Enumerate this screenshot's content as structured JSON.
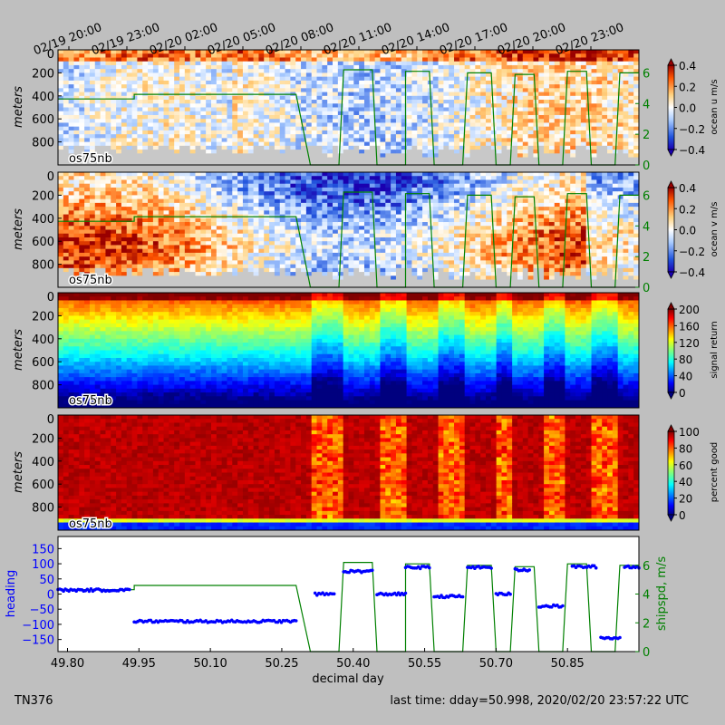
{
  "footer": {
    "cruise": "TN376",
    "last_time": "last time: dday=50.998,  2020/02/20 23:57:22 UTC"
  },
  "colors": {
    "ship_speed": "#008000",
    "heading": "#0000ff",
    "no_data": "#c8c8c8",
    "figure_bg": "#bfbfbf"
  },
  "chart_data": [
    {
      "type": "heatmap",
      "panel": "ocean_u",
      "instrument_label": "os75nb",
      "ylabel": "meters",
      "yticks": [
        "0",
        "200",
        "400",
        "600",
        "800"
      ],
      "ylim": [
        0,
        1000
      ],
      "top_axis_ticks": [
        "02/19 20:00",
        "02/19 23:00",
        "02/20 02:00",
        "02/20 05:00",
        "02/20 08:00",
        "02/20 11:00",
        "02/20 14:00",
        "02/20 17:00",
        "02/20 20:00",
        "02/20 23:00"
      ],
      "colorbar": {
        "label": "ocean u m/s",
        "ticks": [
          "0.4",
          "0.2",
          "0.0",
          "−0.2",
          "−0.4"
        ],
        "range": [
          -0.4,
          0.4
        ],
        "colormap": "blue-white-red"
      },
      "overlay": {
        "name": "ship speed",
        "right_ticks": [
          "6",
          "4",
          "2",
          "0"
        ],
        "range": [
          0,
          7.5
        ]
      }
    },
    {
      "type": "heatmap",
      "panel": "ocean_v",
      "instrument_label": "os75nb",
      "ylabel": "meters",
      "yticks": [
        "0",
        "200",
        "400",
        "600",
        "800"
      ],
      "ylim": [
        0,
        1000
      ],
      "colorbar": {
        "label": "ocean v m/s",
        "ticks": [
          "0.4",
          "0.2",
          "0.0",
          "−0.2",
          "−0.4"
        ],
        "range": [
          -0.4,
          0.4
        ],
        "colormap": "blue-white-red"
      },
      "overlay": {
        "name": "ship speed",
        "right_ticks": [
          "6",
          "4",
          "2",
          "0"
        ],
        "range": [
          0,
          7.5
        ]
      }
    },
    {
      "type": "heatmap",
      "panel": "signal_return",
      "instrument_label": "os75nb",
      "ylabel": "meters",
      "yticks": [
        "0",
        "200",
        "400",
        "600",
        "800"
      ],
      "ylim": [
        0,
        1000
      ],
      "colorbar": {
        "label": "signal return",
        "ticks": [
          "200",
          "160",
          "120",
          "80",
          "40",
          "0"
        ],
        "range": [
          0,
          200
        ],
        "colormap": "jet"
      }
    },
    {
      "type": "heatmap",
      "panel": "percent_good",
      "instrument_label": "os75nb",
      "ylabel": "meters",
      "yticks": [
        "0",
        "200",
        "400",
        "600",
        "800"
      ],
      "ylim": [
        0,
        1000
      ],
      "colorbar": {
        "label": "percent good",
        "ticks": [
          "100",
          "80",
          "60",
          "40",
          "20",
          "0"
        ],
        "range": [
          0,
          100
        ],
        "colormap": "jet"
      }
    },
    {
      "type": "scatter",
      "panel": "heading_speed",
      "xlabel": "decimal day",
      "xticks": [
        "49.80",
        "49.95",
        "50.10",
        "50.25",
        "50.40",
        "50.55",
        "50.70",
        "50.85"
      ],
      "xlim": [
        49.78,
        51.0
      ],
      "ylabel": "heading",
      "yticks": [
        "150",
        "100",
        "50",
        "0",
        "−50",
        "−100",
        "−150"
      ],
      "ylim": [
        -190,
        190
      ],
      "y2label": "shipspd, m/s",
      "y2ticks": [
        "6",
        "4",
        "2",
        "0"
      ],
      "y2lim": [
        0,
        8
      ],
      "heading_segments": [
        {
          "x0": 49.78,
          "x1": 49.93,
          "y": 13
        },
        {
          "x0": 49.94,
          "x1": 50.28,
          "y": -90
        },
        {
          "x0": 50.32,
          "x1": 50.36,
          "y": 0
        },
        {
          "x0": 50.38,
          "x1": 50.44,
          "y": 75
        },
        {
          "x0": 50.45,
          "x1": 50.51,
          "y": 0
        },
        {
          "x0": 50.51,
          "x1": 50.56,
          "y": 88
        },
        {
          "x0": 50.57,
          "x1": 50.63,
          "y": -8
        },
        {
          "x0": 50.64,
          "x1": 50.69,
          "y": 88
        },
        {
          "x0": 50.7,
          "x1": 50.73,
          "y": 0
        },
        {
          "x0": 50.74,
          "x1": 50.77,
          "y": 80
        },
        {
          "x0": 50.79,
          "x1": 50.84,
          "y": -40
        },
        {
          "x0": 50.86,
          "x1": 50.91,
          "y": 90
        },
        {
          "x0": 50.92,
          "x1": 50.96,
          "y": -145
        },
        {
          "x0": 50.97,
          "x1": 51.0,
          "y": 90
        }
      ],
      "speed_cruise": 6.0,
      "speed_segments": [
        {
          "x0": 49.78,
          "x1": 49.94,
          "y": 4.3
        },
        {
          "x0": 49.94,
          "x1": 50.28,
          "y": 4.6
        },
        {
          "x0": 50.31,
          "x1": 50.37,
          "y": 0.0
        },
        {
          "x0": 50.38,
          "x1": 50.44,
          "y": 6.2
        },
        {
          "x0": 50.45,
          "x1": 50.51,
          "y": 0.0
        },
        {
          "x0": 50.51,
          "x1": 50.56,
          "y": 6.1
        },
        {
          "x0": 50.57,
          "x1": 50.63,
          "y": 0.0
        },
        {
          "x0": 50.64,
          "x1": 50.69,
          "y": 6.0
        },
        {
          "x0": 50.7,
          "x1": 50.73,
          "y": 0.0
        },
        {
          "x0": 50.74,
          "x1": 50.78,
          "y": 5.9
        },
        {
          "x0": 50.79,
          "x1": 50.84,
          "y": 0.0
        },
        {
          "x0": 50.85,
          "x1": 50.89,
          "y": 6.1
        },
        {
          "x0": 50.9,
          "x1": 50.95,
          "y": 0.0
        },
        {
          "x0": 50.96,
          "x1": 51.0,
          "y": 6.0
        }
      ]
    }
  ]
}
